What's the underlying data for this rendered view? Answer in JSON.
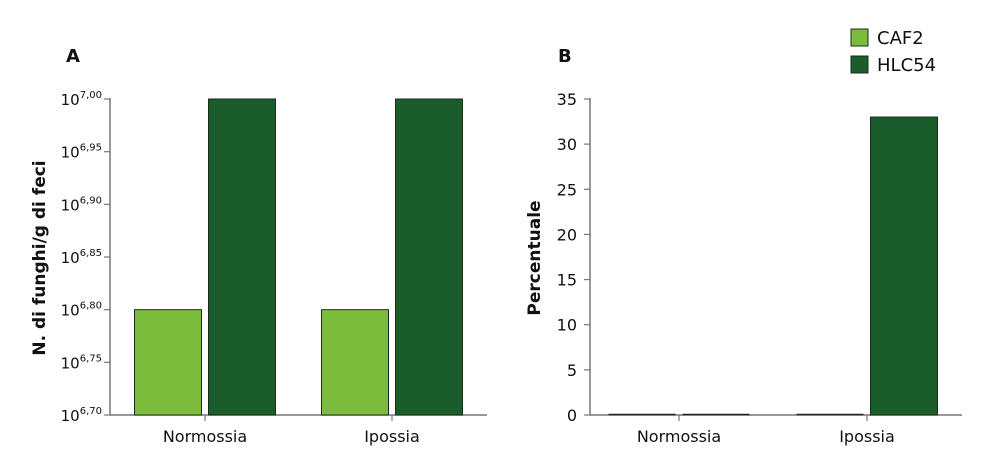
{
  "colors": {
    "CAF2": "#7cbc3c",
    "HLC54": "#1a5c2a",
    "axis": "#777777",
    "bar_stroke": "#1e2a1e"
  },
  "legend": [
    {
      "name": "CAF2",
      "color": "#7cbc3c"
    },
    {
      "name": "HLC54",
      "color": "#1a5c2a"
    }
  ],
  "chart_data": [
    {
      "type": "bar",
      "panel": "A",
      "ylabel": "N. di funghi/g di feci",
      "yscale": "log10",
      "categories": [
        "Normossia",
        "Ipossia"
      ],
      "ylim_exponent": [
        6.7,
        7.0
      ],
      "ytick_base": "10",
      "ytick_exponents": [
        "6,70",
        "6,75",
        "6,80",
        "6,85",
        "6,90",
        "6,95",
        "7,00"
      ],
      "series": [
        {
          "name": "CAF2",
          "exponents": [
            6.8,
            6.8
          ]
        },
        {
          "name": "HLC54",
          "exponents": [
            7.0,
            7.0
          ]
        }
      ]
    },
    {
      "type": "bar",
      "panel": "B",
      "ylabel": "Percentuale",
      "categories": [
        "Normossia",
        "Ipossia"
      ],
      "ylim": [
        0,
        35
      ],
      "yticks": [
        "0",
        "5",
        "10",
        "15",
        "20",
        "25",
        "30",
        "35"
      ],
      "series": [
        {
          "name": "CAF2",
          "values": [
            0,
            0
          ]
        },
        {
          "name": "HLC54",
          "values": [
            0,
            33
          ]
        }
      ]
    }
  ]
}
